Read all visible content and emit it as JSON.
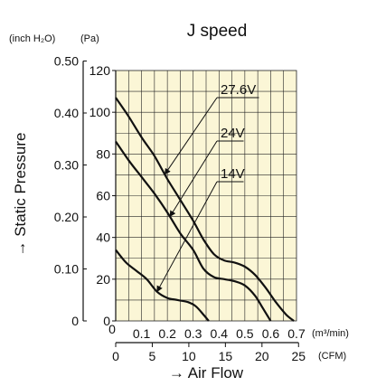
{
  "chart_data": {
    "type": "line",
    "title": "J speed",
    "ylabel": "→ Static Pressure",
    "xlabel": "→ Air Flow",
    "unit_inh2o": "(inch H₂O)",
    "unit_pa": "(Pa)",
    "unit_m3": "(m³/min)",
    "unit_cfm": "(CFM)",
    "xlim": [
      0,
      0.7
    ],
    "ylim": [
      0,
      120
    ],
    "pa_ticks": [
      0,
      20,
      40,
      60,
      80,
      100,
      120
    ],
    "pa_tick_labels": [
      "0",
      "20",
      "40",
      "60",
      "80",
      "100",
      "120"
    ],
    "inh2o_ticks": [
      0,
      0.1,
      0.2,
      0.3,
      0.4,
      0.5
    ],
    "inh2o_tick_labels": [
      "0",
      "0.10",
      "0.20",
      "0.30",
      "0.40",
      "0.50"
    ],
    "m3_ticks": [
      0.1,
      0.2,
      0.3,
      0.4,
      0.5,
      0.6,
      0.7
    ],
    "m3_tick_labels": [
      "0.1",
      "0.2",
      "0.3",
      "0.4",
      "0.5",
      "0.6",
      "0.7"
    ],
    "m3_zero_label": "0",
    "cfm_ticks": [
      0,
      5,
      10,
      15,
      20,
      25
    ],
    "cfm_tick_labels": [
      "0",
      "5",
      "10",
      "15",
      "20",
      "25"
    ],
    "grid": true,
    "background": "#fbf6d6",
    "line_color": "#111111",
    "series": [
      {
        "name": "27.6V",
        "x": [
          0,
          0.05,
          0.1,
          0.15,
          0.2,
          0.25,
          0.3,
          0.34,
          0.38,
          0.42,
          0.46,
          0.5,
          0.54,
          0.58,
          0.62,
          0.66,
          0.69
        ],
        "y": [
          107,
          98,
          88,
          79,
          68,
          58,
          48,
          39,
          32,
          29,
          28,
          26,
          22,
          16,
          9,
          3,
          0
        ]
      },
      {
        "name": "24V",
        "x": [
          0,
          0.05,
          0.1,
          0.15,
          0.2,
          0.25,
          0.3,
          0.34,
          0.38,
          0.42,
          0.46,
          0.5,
          0.54,
          0.57,
          0.6
        ],
        "y": [
          86,
          77,
          69,
          61,
          52,
          42,
          34,
          25,
          21,
          20,
          19,
          17,
          12,
          6,
          0
        ]
      },
      {
        "name": "14V",
        "x": [
          0,
          0.04,
          0.08,
          0.12,
          0.16,
          0.2,
          0.24,
          0.28,
          0.31,
          0.34,
          0.36
        ],
        "y": [
          34,
          28,
          24,
          20,
          14,
          11,
          10,
          9,
          7,
          3,
          0
        ]
      }
    ],
    "annotation_arrows": [
      {
        "series": "27.6V",
        "at_x": 0.19
      },
      {
        "series": "24V",
        "at_x": 0.21
      },
      {
        "series": "14V",
        "at_x": 0.16
      }
    ]
  }
}
